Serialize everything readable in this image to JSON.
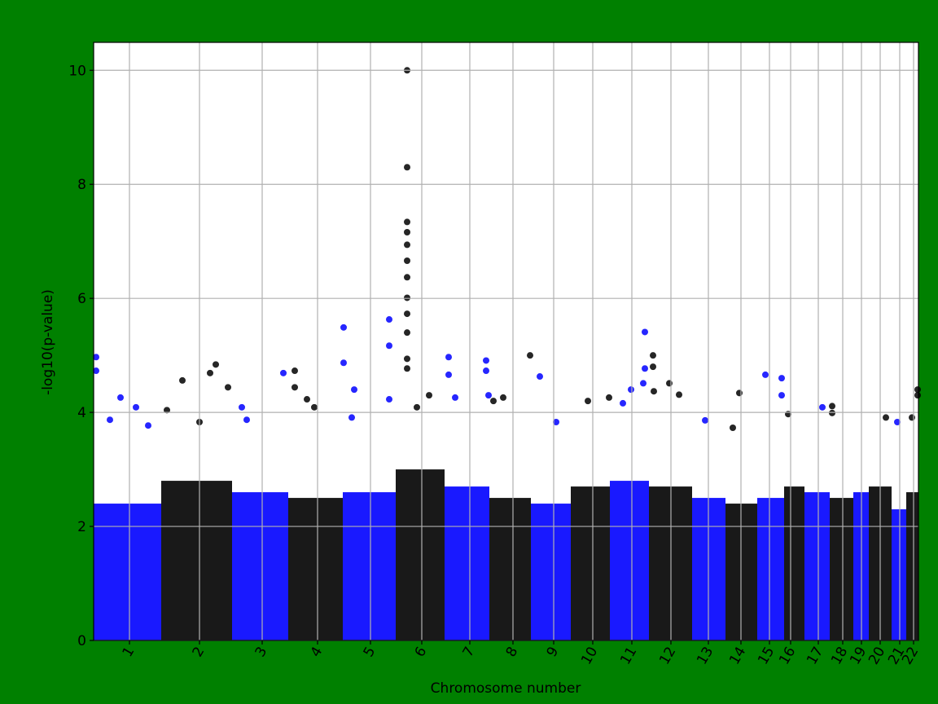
{
  "chart_data": {
    "type": "manhattan",
    "xlabel": "Chromosome number",
    "ylabel": "-log10(p-value)",
    "ylim": [
      0,
      10.49
    ],
    "yticks": [
      0,
      2,
      4,
      6,
      8,
      10
    ],
    "xlim": [
      0,
      1013
    ],
    "xticks": [
      {
        "value": 44,
        "label": "1"
      },
      {
        "value": 130,
        "label": "2"
      },
      {
        "value": 207,
        "label": "3"
      },
      {
        "value": 275,
        "label": "4"
      },
      {
        "value": 340,
        "label": "5"
      },
      {
        "value": 403,
        "label": "6"
      },
      {
        "value": 462,
        "label": "7"
      },
      {
        "value": 515,
        "label": "8"
      },
      {
        "value": 565,
        "label": "9"
      },
      {
        "value": 613,
        "label": "10"
      },
      {
        "value": 661,
        "label": "11"
      },
      {
        "value": 709,
        "label": "12"
      },
      {
        "value": 755,
        "label": "13"
      },
      {
        "value": 795,
        "label": "14"
      },
      {
        "value": 830,
        "label": "15"
      },
      {
        "value": 856,
        "label": "16"
      },
      {
        "value": 890,
        "label": "17"
      },
      {
        "value": 920,
        "label": "18"
      },
      {
        "value": 943,
        "label": "19"
      },
      {
        "value": 966,
        "label": "20"
      },
      {
        "value": 990,
        "label": "21"
      },
      {
        "value": 1007,
        "label": "22"
      }
    ],
    "grid": true,
    "series": [
      {
        "color": "#0000ff",
        "start": 0,
        "end": 83,
        "bulk": 2.4,
        "x": [
          3,
          3,
          33,
          52,
          67,
          20
        ],
        "values": [
          4.97,
          4.73,
          4.26,
          4.09,
          3.77,
          3.87
        ]
      },
      {
        "color": "#000000",
        "start": 83,
        "end": 170,
        "bulk": 2.8,
        "x": [
          109,
          150,
          143,
          165,
          90,
          130
        ],
        "values": [
          4.56,
          4.84,
          4.69,
          4.44,
          4.04,
          3.83
        ]
      },
      {
        "color": "#0000ff",
        "start": 170,
        "end": 239,
        "bulk": 2.6,
        "x": [
          182,
          233,
          188
        ],
        "values": [
          4.09,
          4.69,
          3.87
        ]
      },
      {
        "color": "#000000",
        "start": 239,
        "end": 306,
        "bulk": 2.5,
        "x": [
          247,
          247,
          262,
          271
        ],
        "values": [
          4.73,
          4.44,
          4.23,
          4.09
        ]
      },
      {
        "color": "#0000ff",
        "start": 306,
        "end": 371,
        "bulk": 2.6,
        "x": [
          307,
          307,
          320,
          317,
          363,
          363,
          363
        ],
        "values": [
          5.49,
          4.87,
          4.4,
          3.91,
          5.63,
          5.17,
          4.23
        ]
      },
      {
        "color": "#000000",
        "start": 371,
        "end": 431,
        "bulk": 3.0,
        "x": [
          385,
          385,
          385,
          385,
          385,
          385,
          385,
          385,
          385,
          385,
          385,
          385,
          412,
          397
        ],
        "values": [
          10.0,
          8.3,
          7.34,
          7.16,
          6.94,
          6.66,
          6.37,
          6.01,
          5.73,
          5.4,
          4.94,
          4.77,
          4.3,
          4.09
        ]
      },
      {
        "color": "#0000ff",
        "start": 431,
        "end": 486,
        "bulk": 2.7,
        "x": [
          436,
          436,
          444,
          482,
          482,
          485
        ],
        "values": [
          4.97,
          4.66,
          4.26,
          4.91,
          4.73,
          4.3
        ]
      },
      {
        "color": "#000000",
        "start": 486,
        "end": 537,
        "bulk": 2.5,
        "x": [
          536,
          491,
          503
        ],
        "values": [
          5.0,
          4.2,
          4.26
        ]
      },
      {
        "color": "#0000ff",
        "start": 537,
        "end": 586,
        "bulk": 2.4,
        "x": [
          548,
          568
        ],
        "values": [
          4.63,
          3.83
        ]
      },
      {
        "color": "#000000",
        "start": 586,
        "end": 634,
        "bulk": 2.7,
        "x": [
          607,
          633
        ],
        "values": [
          4.2,
          4.26
        ]
      },
      {
        "color": "#0000ff",
        "start": 634,
        "end": 682,
        "bulk": 2.8,
        "x": [
          677,
          677,
          660,
          650,
          675
        ],
        "values": [
          5.41,
          4.77,
          4.4,
          4.16,
          4.51
        ]
      },
      {
        "color": "#000000",
        "start": 682,
        "end": 735,
        "bulk": 2.7,
        "x": [
          687,
          687,
          707,
          719,
          688
        ],
        "values": [
          5.0,
          4.8,
          4.51,
          4.31,
          4.37
        ]
      },
      {
        "color": "#0000ff",
        "start": 735,
        "end": 776,
        "bulk": 2.5,
        "x": [
          751
        ],
        "values": [
          3.86
        ]
      },
      {
        "color": "#000000",
        "start": 776,
        "end": 815,
        "bulk": 2.4,
        "x": [
          793,
          785
        ],
        "values": [
          4.34,
          3.73
        ]
      },
      {
        "color": "#0000ff",
        "start": 815,
        "end": 848,
        "bulk": 2.5,
        "x": [
          825,
          845,
          845
        ],
        "values": [
          4.66,
          4.6,
          4.3
        ]
      },
      {
        "color": "#000000",
        "start": 848,
        "end": 873,
        "bulk": 2.7,
        "x": [
          853
        ],
        "values": [
          3.97
        ]
      },
      {
        "color": "#0000ff",
        "start": 873,
        "end": 904,
        "bulk": 2.6,
        "x": [
          895
        ],
        "values": [
          4.09
        ]
      },
      {
        "color": "#000000",
        "start": 904,
        "end": 933,
        "bulk": 2.5,
        "x": [
          907,
          907
        ],
        "values": [
          4.11,
          3.99
        ]
      },
      {
        "color": "#0000ff",
        "start": 933,
        "end": 952,
        "bulk": 2.6,
        "x": [],
        "values": []
      },
      {
        "color": "#000000",
        "start": 952,
        "end": 980,
        "bulk": 2.7,
        "x": [
          973
        ],
        "values": [
          3.91
        ]
      },
      {
        "color": "#0000ff",
        "start": 980,
        "end": 998,
        "bulk": 2.3,
        "x": [
          987
        ],
        "values": [
          3.83
        ]
      },
      {
        "color": "#000000",
        "start": 998,
        "end": 1013,
        "bulk": 2.6,
        "x": [
          1012,
          1012,
          1005
        ],
        "values": [
          4.4,
          4.3,
          3.91
        ]
      }
    ]
  }
}
